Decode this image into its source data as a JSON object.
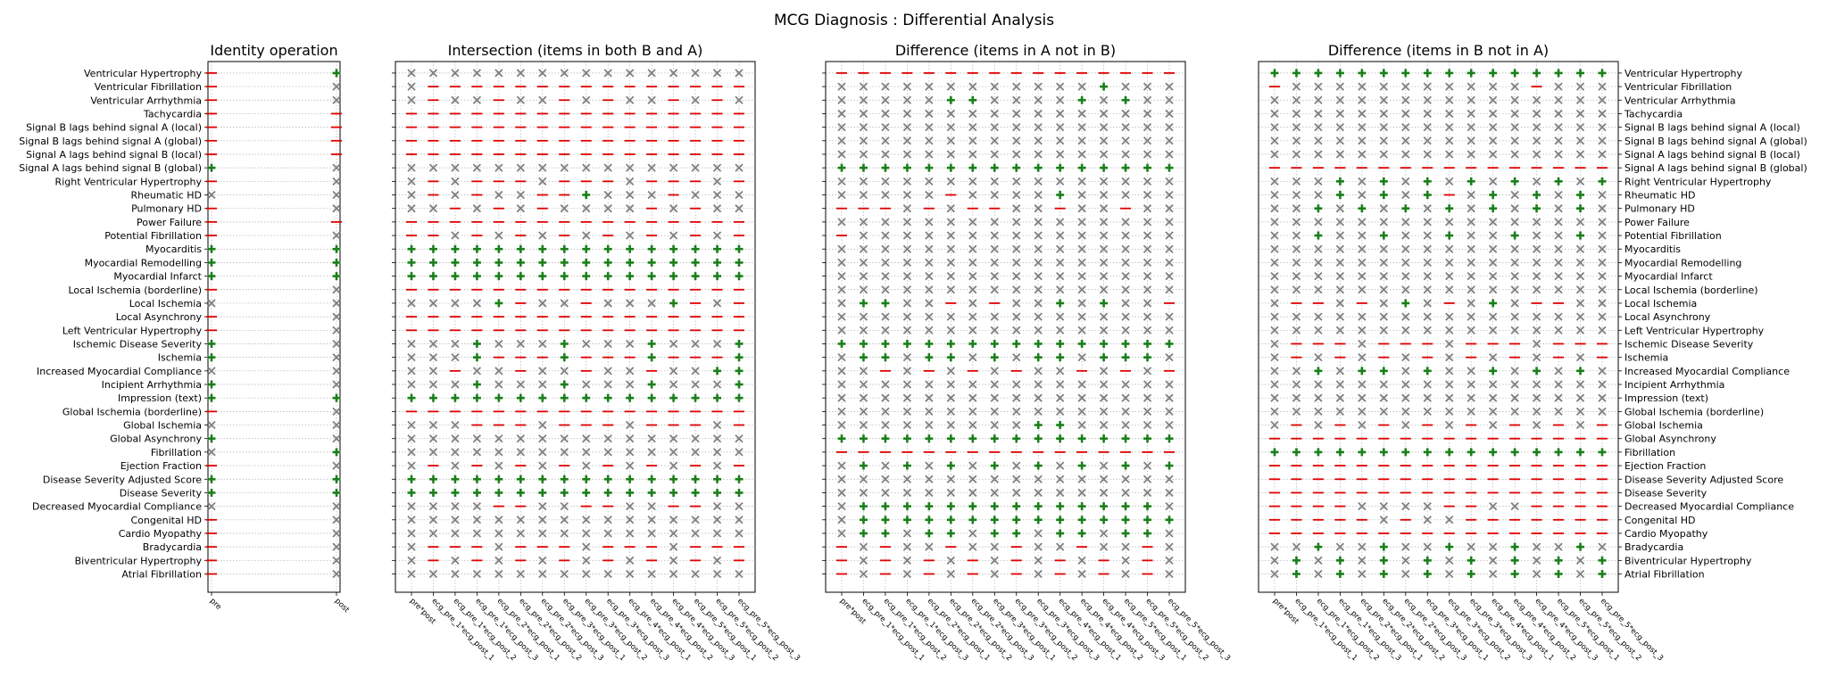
{
  "figure_title": "MCG Diagnosis : Differential Analysis",
  "legend_symbols": {
    "plus": "+",
    "cross": "×",
    "dash": "—"
  },
  "colors": {
    "plus": "#1a7f1a",
    "cross": "#7f7f7f",
    "dash": "#e00000",
    "grid": "#b0b0b0"
  },
  "chart_data": {
    "type": "table",
    "rows": [
      "Ventricular Hypertrophy",
      "Ventricular Fibrillation",
      "Ventricular Arrhythmia",
      "Tachycardia",
      "Signal B lags behind signal A (local)",
      "Signal B lags behind signal A (global)",
      "Signal A lags behind signal B (local)",
      "Signal A lags behind signal B (global)",
      "Right Ventricular Hypertrophy",
      "Rheumatic HD",
      "Pulmonary HD",
      "Power Failure",
      "Potential Fibrillation",
      "Myocarditis",
      "Myocardial Remodelling",
      "Myocardial Infarct",
      "Local Ischemia (borderline)",
      "Local Ischemia",
      "Local Asynchrony",
      "Left Ventricular Hypertrophy",
      "Ischemic Disease Severity",
      "Ischemia",
      "Increased Myocardial Compliance",
      "Incipient Arrhythmia",
      "Impression (text)",
      "Global Ischemia (borderline)",
      "Global Ischemia",
      "Global Asynchrony",
      "Fibrillation",
      "Ejection Fraction",
      "Disease Severity Adjusted Score",
      "Disease Severity",
      "Decreased Myocardial Compliance",
      "Congenital HD",
      "Cardio Myopathy",
      "Bradycardia",
      "Biventricular Hypertrophy",
      "Atrial Fibrillation"
    ],
    "panels": [
      {
        "title": "Identity operation",
        "columns": [
          "pre",
          "post"
        ],
        "cells": [
          "-+",
          "-x",
          "-x",
          "--",
          "--",
          "--",
          "--",
          "+x",
          "-x",
          "xx",
          "-x",
          "--",
          "-x",
          "++",
          "++",
          "++",
          "-x",
          "xx",
          "-x",
          "-x",
          "+x",
          "+x",
          "xx",
          "+x",
          "++",
          "-x",
          "xx",
          "+x",
          "x+",
          "-x",
          "++",
          "++",
          "xx",
          "-x",
          "-x",
          "-x",
          "-x",
          "-x"
        ]
      },
      {
        "title": "Intersection (items in both B and A)",
        "columns": [
          "pre*post",
          "ecg_pre_1*ecg_post_1",
          "ecg_pre_1*ecg_post_2",
          "ecg_pre_1*ecg_post_3",
          "ecg_pre_2*ecg_post_1",
          "ecg_pre_2*ecg_post_2",
          "ecg_pre_2*ecg_post_3",
          "ecg_pre_3*ecg_post_1",
          "ecg_pre_3*ecg_post_2",
          "ecg_pre_3*ecg_post_3",
          "ecg_pre_4*ecg_post_1",
          "ecg_pre_4*ecg_post_2",
          "ecg_pre_4*ecg_post_3",
          "ecg_pre_5*ecg_post_1",
          "ecg_pre_5*ecg_post_2",
          "ecg_pre_5*ecg_post_3"
        ],
        "cells": [
          "xxxxxxxxxxxxxxxx",
          "x---------------",
          "x-xx-xx-x-xx-x-x",
          "----------------",
          "----------------",
          "----------------",
          "----------------",
          "xxxxxxxxxxxxxxxx",
          "x-x---x---x---x-",
          "x-x-xx--+xxx-xxx",
          "xx-x-x-xxxx-x-xx",
          "----------------",
          "--x-x-x-x-x-x-x-",
          "++++++++++++++++",
          "++++++++++++++++",
          "++++++++++++++++",
          "----------------",
          "xxxx+-xx-xxx+-x-",
          "----------------",
          "----------------",
          "xxx+xxx+xxx+xxx+",
          "xxx+---+---+---+",
          "xx-xx-xx-xx-xx++",
          "xxx+xxx+xxx+xxx+",
          "++++++++++++++++",
          "----------------",
          "xxx---x---x---x-",
          "xxxxxxxxxxxxxxxx",
          "xxxxxxxxxxxxxxxx",
          "x-x-x-x-x-x-x-x-",
          "++++++++++++++++",
          "++++++++++++++++",
          "xxxx--xx--xx--xx",
          "xxxxxxxxxxxxxxxx",
          "xxxxxxxxxxxxxxxx",
          "x---x---x---x---",
          "x-x-x-x-x-x-x-x-",
          "xxxxxxxxxxxxxxxx"
        ]
      },
      {
        "title": "Difference (items in A not in B)",
        "columns": [
          "pre*post",
          "ecg_pre_1*ecg_post_1",
          "ecg_pre_1*ecg_post_2",
          "ecg_pre_1*ecg_post_3",
          "ecg_pre_2*ecg_post_1",
          "ecg_pre_2*ecg_post_2",
          "ecg_pre_2*ecg_post_3",
          "ecg_pre_3*ecg_post_1",
          "ecg_pre_3*ecg_post_2",
          "ecg_pre_3*ecg_post_3",
          "ecg_pre_4*ecg_post_1",
          "ecg_pre_4*ecg_post_2",
          "ecg_pre_4*ecg_post_3",
          "ecg_pre_5*ecg_post_1",
          "ecg_pre_5*ecg_post_2",
          "ecg_pre_5*ecg_post_3"
        ],
        "cells": [
          "----------------",
          "xxxxxxxxxxxx+xxx",
          "xxxxx++xxxx+x+xx",
          "xxxxxxxxxxxxxxxx",
          "xxxxxxxxxxxxxxxx",
          "xxxxxxxxxxxxxxxx",
          "xxxxxxxxxxxxxxxx",
          "++++++++++++++++",
          "xxxxxxxxxxxxxxxx",
          "xxxxx-xxxx+xxxxx",
          "---x-x--xx-xx-xx",
          "xxxxxxxxxxxxxxxx",
          "-xxxxxxxxxxxxxxx",
          "xxxxxxxxxxxxxxxx",
          "xxxxxxxxxxxxxxxx",
          "xxxxxxxxxxxxxxxx",
          "xxxxxxxxxxxxxxxx",
          "x++xx-x-xx+x+xx-",
          "xxxxxxxxxxxxxxxx",
          "xxxxxxxxxxxxxxxx",
          "++++++++++++++++",
          "x++x++x+x++x+++x",
          "xx-x-x-x-xx-x-x-",
          "xxxxxxxxxxxxxxxx",
          "xxxxxxxxxxxxxxxx",
          "xxxxxxxxxxxxxxxx",
          "xxxxxxxxx++xxxxx",
          "++++++++++++++++",
          "----------------",
          "x+x+x+x+x+x+x+x+",
          "xxxxxxxxxxxxxxxx",
          "xxxxxxxxxxxxxxxx",
          "x++++++++++++++x",
          "x+++++++++++++++",
          "x++x++x++x++x++x",
          "-x-xx-xx-xx-xx-x",
          "-x-x-x-x-x-x-x-x",
          "-x-x-x-x-x-x-x-x"
        ]
      },
      {
        "title": "Difference (items in B not in A)",
        "columns": [
          "pre*post",
          "ecg_pre_1*ecg_post_1",
          "ecg_pre_1*ecg_post_2",
          "ecg_pre_1*ecg_post_3",
          "ecg_pre_2*ecg_post_1",
          "ecg_pre_2*ecg_post_2",
          "ecg_pre_2*ecg_post_3",
          "ecg_pre_3*ecg_post_1",
          "ecg_pre_3*ecg_post_2",
          "ecg_pre_3*ecg_post_3",
          "ecg_pre_4*ecg_post_1",
          "ecg_pre_4*ecg_post_2",
          "ecg_pre_4*ecg_post_3",
          "ecg_pre_5*ecg_post_1",
          "ecg_pre_5*ecg_post_2",
          "ecg_pre_5*ecg_post_3"
        ],
        "cells": [
          "++++++++++++++++",
          "-xxxxxxxxxxx-xxx",
          "xxxxxxxxxxxxxxxx",
          "xxxxxxxxxxxxxxxx",
          "xxxxxxxxxxxxxxxx",
          "xxxxxxxxxxxxxxxx",
          "xxxxxxxxxxxxxxxx",
          "----------------",
          "xxx+x+x+x+x+x+x+",
          "xxx+x+x+-x+x+x+x",
          "xx+x+x+x+x+x+x+x",
          "xxxxxxxxxxxxxxxx",
          "xx+xx+xx+xx+xx+x",
          "xxxxxxxxxxxxxxxx",
          "xxxxxxxxxxxxxxxx",
          "xxxxxxxxxxxxxxxx",
          "xxxxxxxxxxxxxxxx",
          "x--x-x+x-x+x--xx",
          "xxxxxxxxxxxxxxxx",
          "xxxxxxxxxxxxxxxx",
          "x---x---x---x---",
          "x-x-x-x-x-x-x-x-",
          "xx+x++x+xx+x+x+x",
          "xxxxxxxxxxxxxxxx",
          "xxxxxxxxxxxxxxxx",
          "xxxxxxxxxxxxxxxx",
          "x-x-x-x-x-x-x-x-",
          "----------------",
          "++++++++++++++++",
          "----------------",
          "----------------",
          "----------------",
          "----xxxx--xx----",
          "-----x-xx-------",
          "----------------",
          "xx+xx+xx+xx+xx+x",
          "x+x+x+x+x+x+x+x+",
          "x+x+x+x+x+x+x+x+"
        ]
      }
    ]
  }
}
